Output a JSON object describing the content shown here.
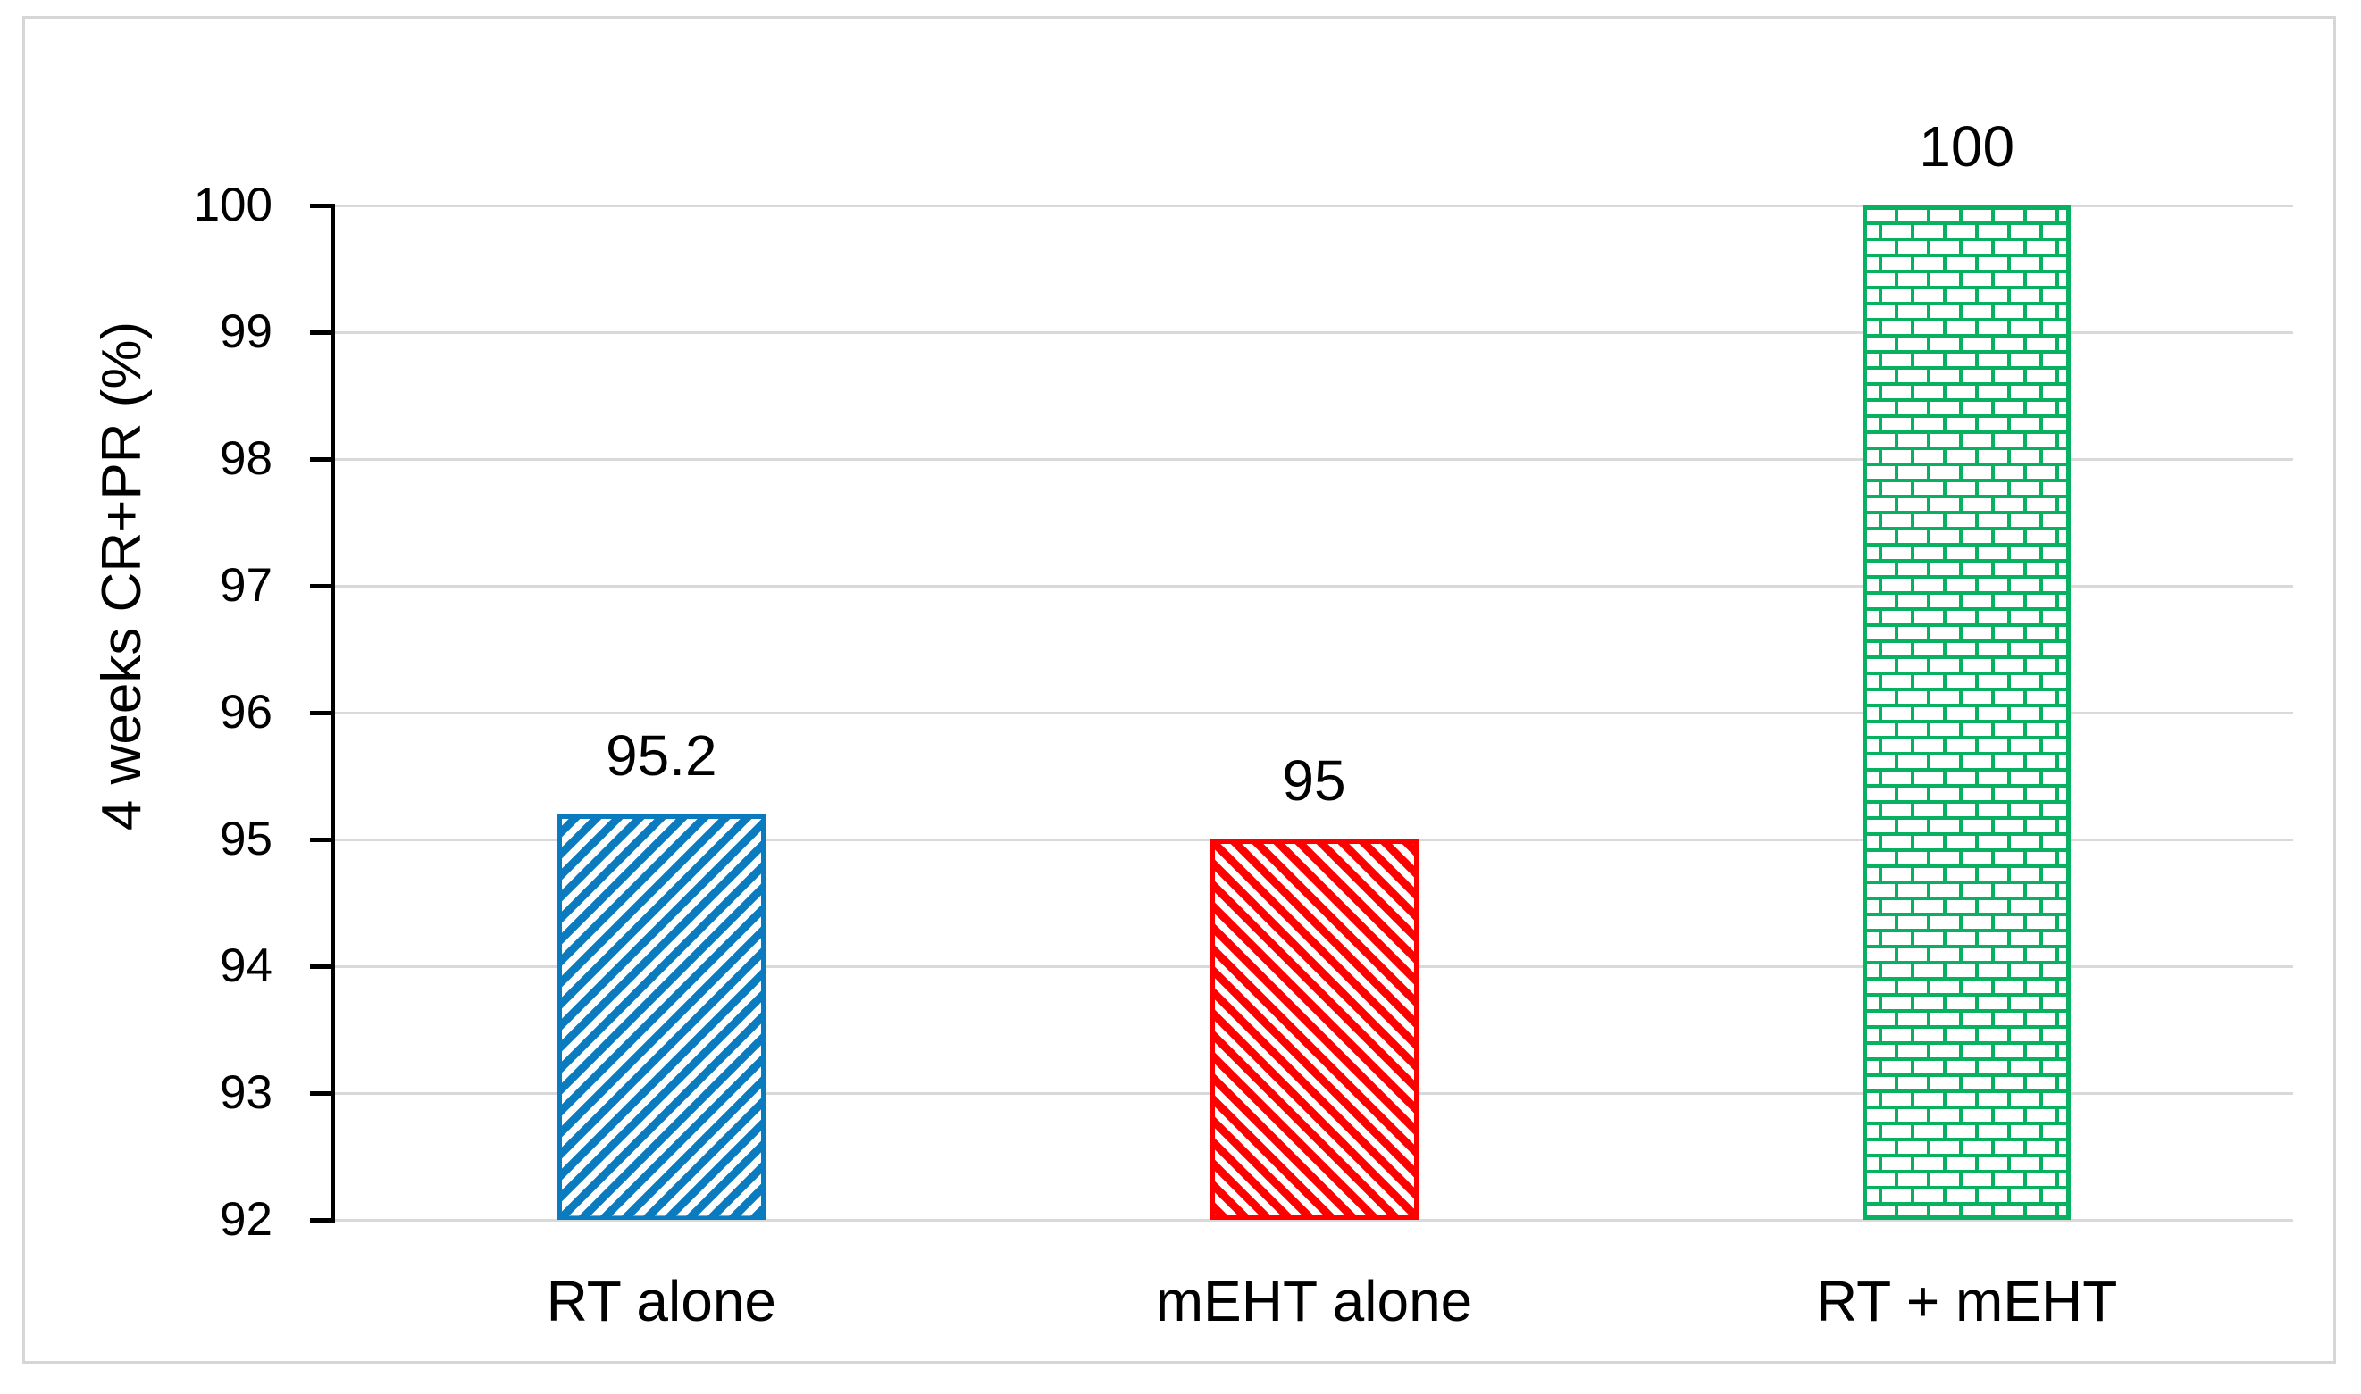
{
  "chart_data": {
    "type": "bar",
    "title": "",
    "ylabel": "4 weeks CR+PR (%)",
    "xlabel": "",
    "categories": [
      "RT alone",
      "mEHT alone",
      "RT + mEHT"
    ],
    "values": [
      95.2,
      95,
      100
    ],
    "value_labels": [
      "95.2",
      "95",
      "100"
    ],
    "ylim": [
      92,
      100
    ],
    "yticks": [
      92,
      93,
      94,
      95,
      96,
      97,
      98,
      99,
      100
    ],
    "grid": "horizontal",
    "legend": "none",
    "series": [
      {
        "category": "RT alone",
        "value": 95.2,
        "label": "95.2",
        "color": "#0B7BC0",
        "pattern": "diagonal-up"
      },
      {
        "category": "mEHT alone",
        "value": 95,
        "label": "95",
        "color": "#FF0000",
        "pattern": "diagonal-down"
      },
      {
        "category": "RT + mEHT",
        "value": 100,
        "label": "100",
        "color": "#07B15F",
        "pattern": "brick"
      }
    ],
    "colors": {
      "gridline": "#D9D9D9",
      "axis": "#000000",
      "text": "#000000",
      "figure_border": "#D6D6D6",
      "background": "#FFFFFF"
    }
  }
}
